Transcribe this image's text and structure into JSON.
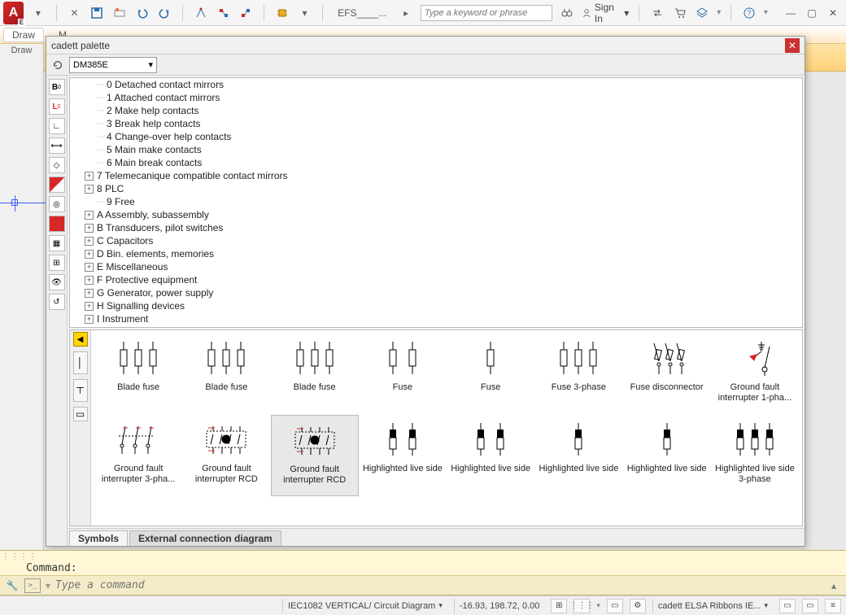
{
  "app": {
    "letter": "A"
  },
  "titlebar": {
    "efs_label": "EFS____...",
    "search_placeholder": "Type a keyword or phrase",
    "signin": "Sign In"
  },
  "menurow": {
    "draw": "Draw",
    "m": "M"
  },
  "palette": {
    "title": "cadett palette",
    "dropdown": "DM385E",
    "tree": [
      {
        "exp": "",
        "label": "0 Detached contact mirrors"
      },
      {
        "exp": "",
        "label": "1 Attached contact mirrors"
      },
      {
        "exp": "",
        "label": "2 Make help contacts"
      },
      {
        "exp": "",
        "label": "3 Break help contacts"
      },
      {
        "exp": "",
        "label": "4 Change-over help contacts"
      },
      {
        "exp": "",
        "label": "5 Main make contacts"
      },
      {
        "exp": "",
        "label": "6 Main break contacts"
      },
      {
        "exp": "+",
        "label": "7 Telemecanique compatible contact mirrors"
      },
      {
        "exp": "+",
        "label": "8 PLC"
      },
      {
        "exp": "",
        "label": "9 Free"
      },
      {
        "exp": "+",
        "label": "A Assembly, subassembly"
      },
      {
        "exp": "+",
        "label": "B Transducers, pilot switches"
      },
      {
        "exp": "+",
        "label": "C Capacitors"
      },
      {
        "exp": "+",
        "label": "D Bin. elements, memories"
      },
      {
        "exp": "+",
        "label": "E Miscellaneous"
      },
      {
        "exp": "+",
        "label": "F Protective equipment"
      },
      {
        "exp": "+",
        "label": "G Generator, power supply"
      },
      {
        "exp": "+",
        "label": "H Signalling devices"
      },
      {
        "exp": "+",
        "label": "I Instrument"
      }
    ],
    "symbols_row1": [
      {
        "label": "Blade fuse",
        "type": "fuse3"
      },
      {
        "label": "Blade fuse",
        "type": "fuse3"
      },
      {
        "label": "Blade fuse",
        "type": "fuse3"
      },
      {
        "label": "Fuse",
        "type": "fuse2"
      },
      {
        "label": "Fuse",
        "type": "fuse1"
      },
      {
        "label": "Fuse 3-phase",
        "type": "fuse3"
      },
      {
        "label": "Fuse disconnector",
        "type": "disc"
      },
      {
        "label": "Ground fault interrupter 1-pha...",
        "type": "gfi1"
      }
    ],
    "symbols_row2": [
      {
        "label": "Ground fault interrupter 3-pha...",
        "type": "gfi3",
        "sel": false
      },
      {
        "label": "Ground fault interrupter RCD",
        "type": "rcd",
        "sel": false
      },
      {
        "label": "Ground fault interrupter RCD",
        "type": "rcd",
        "sel": true
      },
      {
        "label": "Highlighted live side",
        "type": "hl2"
      },
      {
        "label": "Highlighted live side",
        "type": "hl2"
      },
      {
        "label": "Highlighted live side",
        "type": "hl1"
      },
      {
        "label": "Highlighted live side",
        "type": "hl1"
      },
      {
        "label": "Highlighted live side 3-phase",
        "type": "hl3"
      }
    ],
    "tabs": {
      "symbols": "Symbols",
      "external": "External connection diagram"
    }
  },
  "command": {
    "history": "Command:",
    "placeholder": "Type a command"
  },
  "statusbar": {
    "layout": "IEC1082 VERTICAL/ Circuit Diagram",
    "coords": "-16.93, 198.72, 0.00",
    "workspace": "cadett ELSA Ribbons IE..."
  },
  "colors": {
    "accent_orange": "#ffd27a",
    "accent_red": "#d62828",
    "cmd_bg": "#fff7d6"
  }
}
